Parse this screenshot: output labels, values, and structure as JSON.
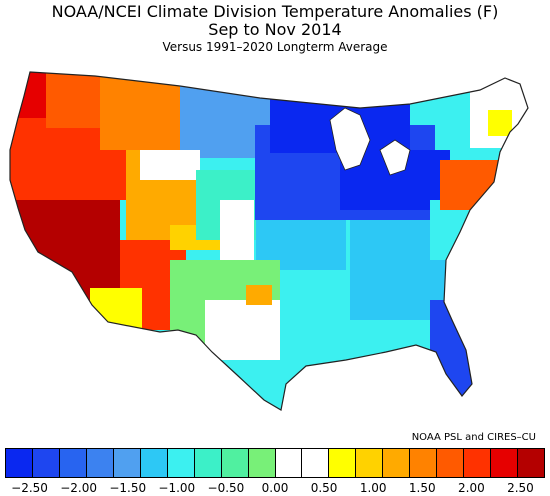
{
  "title": "NOAA/NCEI Climate Division Temperature Anomalies (F)",
  "period": "Sep to Nov 2014",
  "baseline": "Versus 1991–2020 Longterm Average",
  "credit": "NOAA PSL and CIRES–CU",
  "legend": {
    "colors": [
      "#0a28f0",
      "#1e46f0",
      "#2864f0",
      "#3c82f0",
      "#50a0f0",
      "#2dc8f5",
      "#3cf0f0",
      "#3cf0c8",
      "#50f0a0",
      "#78f078",
      "#ffffff",
      "#ffffff",
      "#ffff00",
      "#ffd200",
      "#ffaa00",
      "#ff8200",
      "#ff5a00",
      "#ff3200",
      "#e60000",
      "#b40000"
    ],
    "tick_labels": [
      "−2.50",
      "−2.00",
      "−1.50",
      "−1.00",
      "−0.50",
      "0.00",
      "0.50",
      "1.00",
      "1.50",
      "2.00",
      "2.50"
    ],
    "tick_values": [
      -2.5,
      -2.0,
      -1.5,
      -1.0,
      -0.5,
      0.0,
      0.5,
      1.0,
      1.5,
      2.0,
      2.5
    ],
    "range": [
      -2.75,
      2.75
    ]
  },
  "regions": [
    {
      "name": "Pacific Northwest coast",
      "color": "#e60000"
    },
    {
      "name": "California / Great Basin",
      "color": "#b40000"
    },
    {
      "name": "Desert Southwest",
      "color": "#ff3200"
    },
    {
      "name": "Northern Rockies",
      "color": "#ff8200"
    },
    {
      "name": "Central Rockies",
      "color": "#ffaa00"
    },
    {
      "name": "Northern Plains",
      "color": "#50a0f0"
    },
    {
      "name": "Upper Midwest / Great Lakes",
      "color": "#0a28f0"
    },
    {
      "name": "Ohio Valley",
      "color": "#1e46f0"
    },
    {
      "name": "Southern Plains",
      "color": "#78f078"
    },
    {
      "name": "Gulf Coast / Southeast",
      "color": "#2dc8f5"
    },
    {
      "name": "Mid-Atlantic",
      "color": "#3cf0f0"
    },
    {
      "name": "New England",
      "color": "#ffffff"
    }
  ]
}
